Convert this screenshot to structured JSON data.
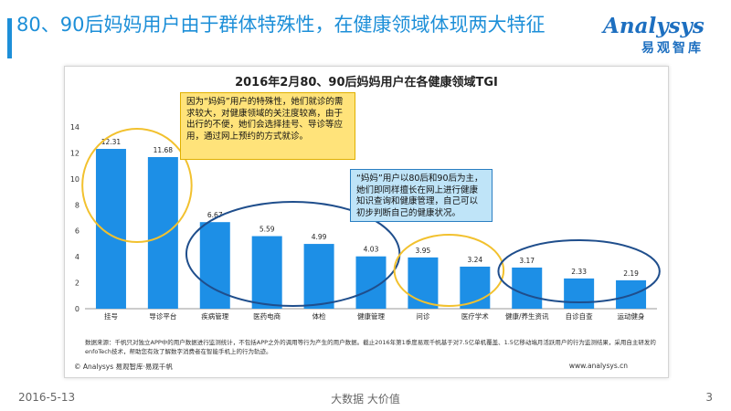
{
  "header": {
    "title": "80、90后妈妈用户由于群体特殊性，在健康领域体现两大特征"
  },
  "logo": {
    "en": "Analysys",
    "cn": "易观智库"
  },
  "chart_data": {
    "type": "bar",
    "title": "2016年2月80、90后妈妈用户在各健康领域TGI",
    "categories": [
      "挂号",
      "导诊平台",
      "疾病管理",
      "医药电商",
      "体检",
      "健康管理",
      "问诊",
      "医疗学术",
      "健康/养生资讯",
      "自诊自查",
      "运动健身"
    ],
    "values": [
      12.31,
      11.68,
      6.67,
      5.59,
      4.99,
      4.03,
      3.95,
      3.24,
      3.17,
      2.33,
      2.19
    ],
    "value_labels": [
      "12.31",
      "11.68",
      "6.67",
      "5.59",
      "4.99",
      "4.03",
      "3.95",
      "3.24",
      "3.17",
      "2.33",
      "2.19"
    ],
    "ylim": [
      0,
      14
    ],
    "yticks": [
      "0",
      "2",
      "4",
      "6",
      "8",
      "10",
      "12",
      "14"
    ],
    "bar_color": "#1d8fe6",
    "grid": false,
    "legend": "none"
  },
  "callouts": {
    "yellow": "因为“妈妈”用户的特殊性，她们就诊的需求较大，对健康领域的关注度较高，由于出行的不便，她们会选择挂号、导诊等应用，通过网上预约的方式就诊。",
    "blue": "“妈妈”用户以80后和90后为主，她们即同样擅长在网上进行健康知识查询和健康管理，自己可以初步判断自己的健康状况。"
  },
  "note": "数据来源：千帆只对独立APP中的用户数据进行监测统计，不包括APP之外的调用等行为产生的用户数据。截止2016年第1季度易观千帆基于对7.5亿单机覆盖、1.5亿移动端月活跃用户的行为监测结果，采用自主研发的enfoTech技术，帮助您有效了解数字消费者在智能手机上的行为轨迹。",
  "copyright": "© Analysys 易观智库·易观千帆",
  "website": "www.analysys.cn",
  "footer": {
    "date": "2016-5-13",
    "slogan": "大数据    大价值",
    "page": "3"
  },
  "colors": {
    "accent": "#1d8fd8",
    "ellipse_yellow": "#f2c12e",
    "ellipse_blue": "#1f4e8c"
  }
}
